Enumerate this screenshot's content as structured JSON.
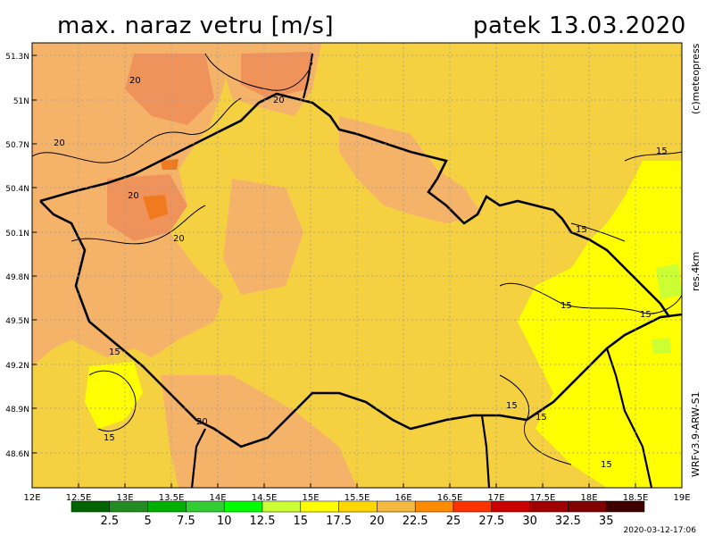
{
  "header": {
    "title": "max. naraz vetru [m/s]",
    "date": "patek 13.03.2020"
  },
  "side": {
    "copyright": "(c)meteopress",
    "resolution": "res.4km",
    "model": "WRFv3.9-ARW-S1"
  },
  "footer": {
    "timestamp": "2020-03-12-17:06"
  },
  "map": {
    "lon_ticks": [
      "12E",
      "12.5E",
      "13E",
      "13.5E",
      "14E",
      "14.5E",
      "15E",
      "15.5E",
      "16E",
      "16.5E",
      "17E",
      "17.5E",
      "18E",
      "18.5E",
      "19E"
    ],
    "lat_ticks": [
      "51.3N",
      "51N",
      "50.7N",
      "50.4N",
      "50.1N",
      "49.8N",
      "49.5N",
      "49.2N",
      "48.9N",
      "48.6N"
    ],
    "contour_labels": [
      "20",
      "20",
      "20",
      "20",
      "20",
      "20",
      "15",
      "15",
      "15",
      "15",
      "15",
      "15",
      "15",
      "15",
      "15"
    ]
  },
  "legend": {
    "labels": [
      "2.5",
      "5",
      "7.5",
      "10",
      "12.5",
      "15",
      "17.5",
      "20",
      "22.5",
      "25",
      "27.5",
      "30",
      "32.5",
      "35"
    ],
    "colors": [
      "#006400",
      "#228b22",
      "#00b000",
      "#32cd32",
      "#00ff00",
      "#ccff33",
      "#ffff00",
      "#ffd700",
      "#f5b942",
      "#ff8c00",
      "#ff3300",
      "#cc0000",
      "#a00000",
      "#800000",
      "#400000"
    ]
  }
}
